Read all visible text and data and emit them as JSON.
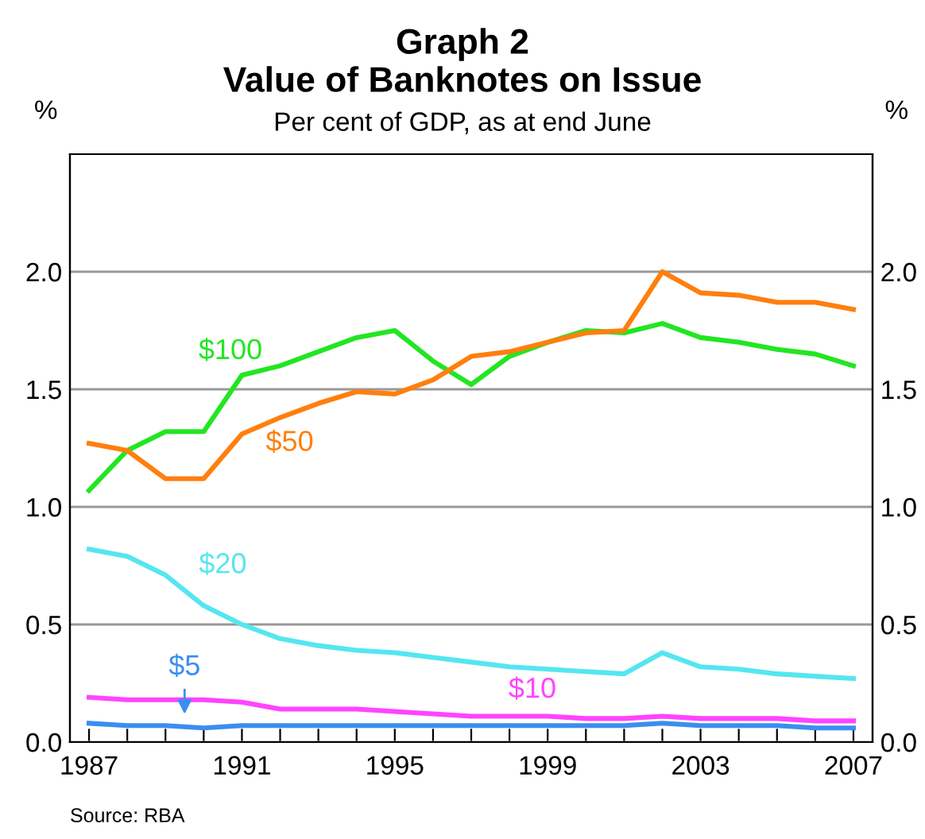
{
  "chart_data": {
    "type": "line",
    "title": "Graph 2\nValue of Banknotes on Issue",
    "subtitle": "Per cent of GDP, as at end June",
    "ylabel": "%",
    "y2label": "%",
    "x": [
      1987,
      1988,
      1989,
      1990,
      1991,
      1992,
      1993,
      1994,
      1995,
      1996,
      1997,
      1998,
      1999,
      2000,
      2001,
      2002,
      2003,
      2004,
      2005,
      2006,
      2007
    ],
    "series": [
      {
        "name": "$100",
        "color": "#22e622",
        "values": [
          1.07,
          1.24,
          1.32,
          1.32,
          1.56,
          1.6,
          1.66,
          1.72,
          1.75,
          1.62,
          1.52,
          1.64,
          1.7,
          1.75,
          1.74,
          1.78,
          1.72,
          1.7,
          1.67,
          1.65,
          1.6
        ]
      },
      {
        "name": "$50",
        "color": "#ff7f0e",
        "values": [
          1.27,
          1.24,
          1.12,
          1.12,
          1.31,
          1.38,
          1.44,
          1.49,
          1.48,
          1.54,
          1.64,
          1.66,
          1.7,
          1.74,
          1.75,
          2.0,
          1.91,
          1.9,
          1.87,
          1.87,
          1.84
        ]
      },
      {
        "name": "$20",
        "color": "#55e6f0",
        "values": [
          0.82,
          0.79,
          0.71,
          0.58,
          0.5,
          0.44,
          0.41,
          0.39,
          0.38,
          0.36,
          0.34,
          0.32,
          0.31,
          0.3,
          0.29,
          0.38,
          0.32,
          0.31,
          0.29,
          0.28,
          0.27
        ]
      },
      {
        "name": "$10",
        "color": "#ff44ff",
        "values": [
          0.19,
          0.18,
          0.18,
          0.18,
          0.17,
          0.14,
          0.14,
          0.14,
          0.13,
          0.12,
          0.11,
          0.11,
          0.11,
          0.1,
          0.1,
          0.11,
          0.1,
          0.1,
          0.1,
          0.09,
          0.09
        ]
      },
      {
        "name": "$5",
        "color": "#3a8ef0",
        "values": [
          0.08,
          0.07,
          0.07,
          0.06,
          0.07,
          0.07,
          0.07,
          0.07,
          0.07,
          0.07,
          0.07,
          0.07,
          0.07,
          0.07,
          0.07,
          0.08,
          0.07,
          0.07,
          0.07,
          0.06,
          0.06
        ]
      }
    ],
    "xlim": [
      1986.5,
      2007.5
    ],
    "xticks": [
      {
        "value": 1987,
        "label": "1987"
      },
      {
        "value": 1988,
        "label": null
      },
      {
        "value": 1989,
        "label": null
      },
      {
        "value": 1990,
        "label": null
      },
      {
        "value": 1991,
        "label": "1991"
      },
      {
        "value": 1992,
        "label": null
      },
      {
        "value": 1993,
        "label": null
      },
      {
        "value": 1994,
        "label": null
      },
      {
        "value": 1995,
        "label": "1995"
      },
      {
        "value": 1996,
        "label": null
      },
      {
        "value": 1997,
        "label": null
      },
      {
        "value": 1998,
        "label": null
      },
      {
        "value": 1999,
        "label": "1999"
      },
      {
        "value": 2000,
        "label": null
      },
      {
        "value": 2001,
        "label": null
      },
      {
        "value": 2002,
        "label": null
      },
      {
        "value": 2003,
        "label": "2003"
      },
      {
        "value": 2004,
        "label": null
      },
      {
        "value": 2005,
        "label": null
      },
      {
        "value": 2006,
        "label": null
      },
      {
        "value": 2007,
        "label": "2007"
      }
    ],
    "ylim": [
      0,
      2.5
    ],
    "yticks": [
      {
        "value": 0,
        "label": "0.0"
      },
      {
        "value": 0.5,
        "label": "0.5"
      },
      {
        "value": 1,
        "label": "1.0"
      },
      {
        "value": 1.5,
        "label": "1.5"
      },
      {
        "value": 2,
        "label": "2.0"
      }
    ],
    "y2lim": [
      0,
      2.5
    ],
    "y2ticks": [
      {
        "value": 0,
        "label": "0.0"
      },
      {
        "value": 0.5,
        "label": "0.5"
      },
      {
        "value": 1,
        "label": "1.0"
      },
      {
        "value": 1.5,
        "label": "1.5"
      },
      {
        "value": 2,
        "label": "2.0"
      }
    ],
    "grid": "y",
    "legend": false,
    "marker": "none",
    "line_style": "solid",
    "annotations": [
      "Source: RBA"
    ]
  }
}
